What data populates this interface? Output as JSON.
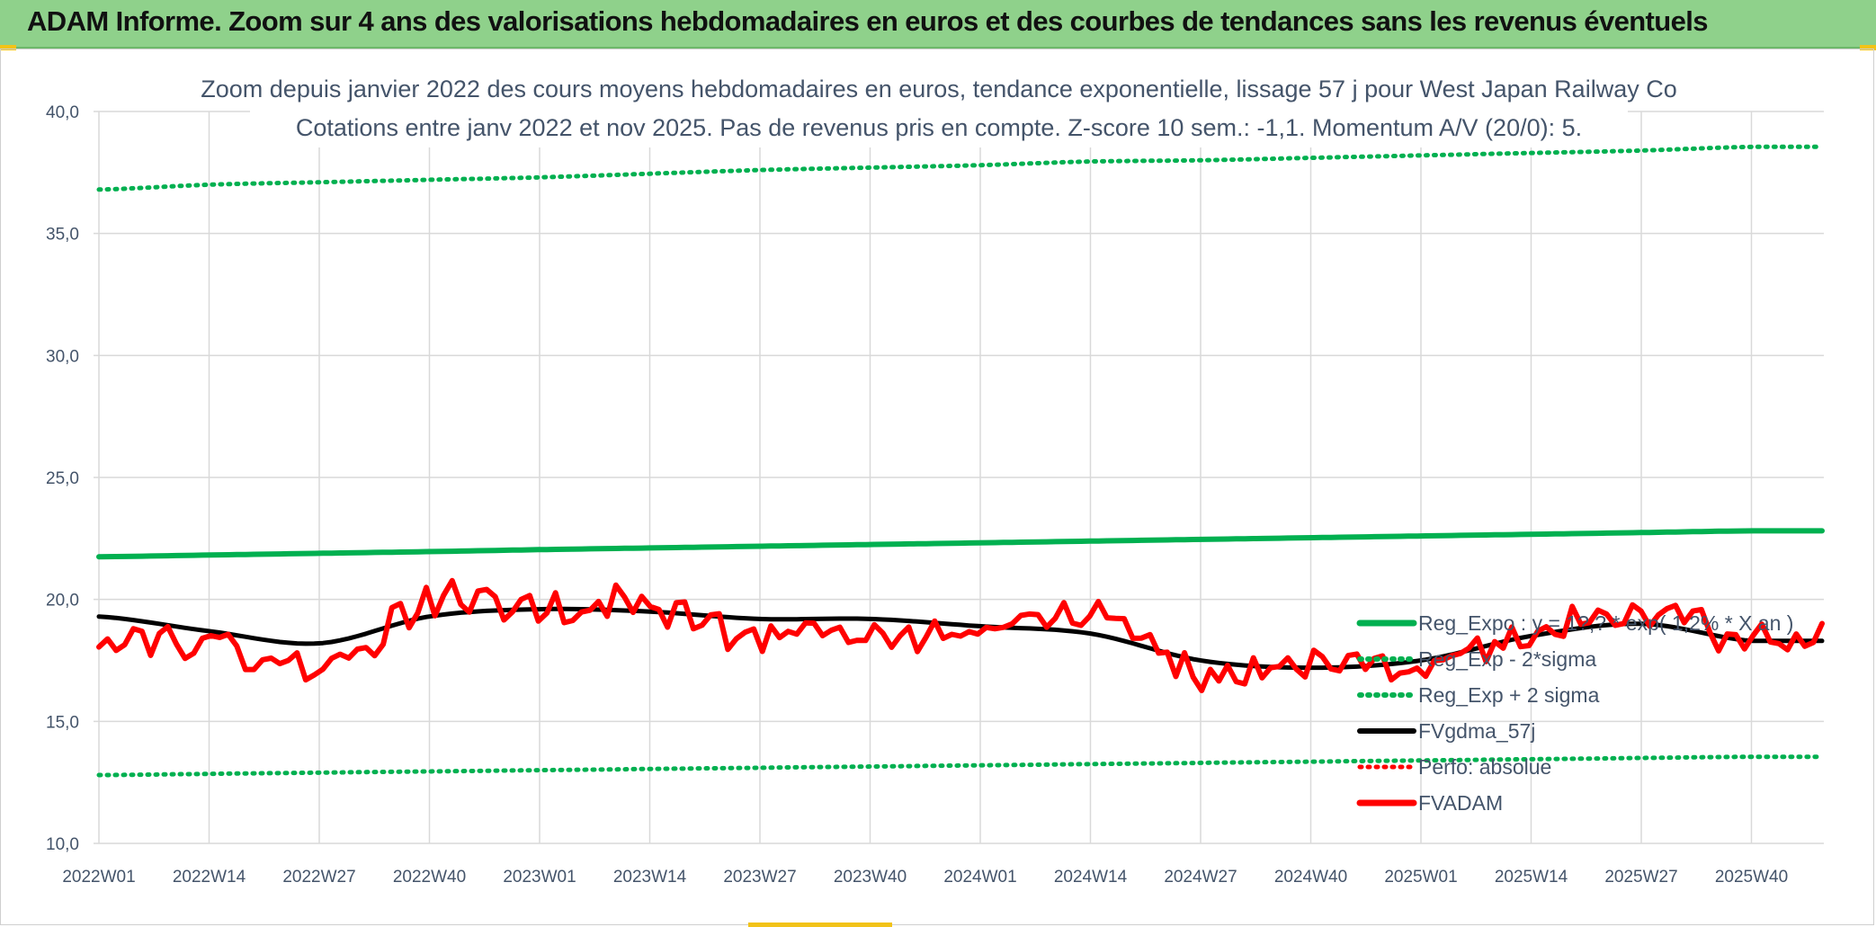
{
  "banner": {
    "title": "ADAM Informe. Zoom sur 4 ans des valorisations hebdomadaires en euros et des courbes de tendances sans les revenus éventuels"
  },
  "colors": {
    "banner_bg": "#8fd18b",
    "reg_exp": "#00b050",
    "fvgdma": "#000000",
    "fvadam": "#ff0000",
    "grid": "#d9d9d9",
    "text": "#44546a"
  },
  "chart_data": {
    "type": "line",
    "title": "Zoom depuis janvier 2022 des cours moyens hebdomadaires en euros, tendance exponentielle, lissage 57 j pour West Japan Railway Co",
    "subtitle": "Cotations entre janv 2022 et nov 2025. Pas de revenus pris en compte. Z-score 10 sem.: -1,1. Momentum A/V (20/0): 5.",
    "ylim": [
      10,
      40
    ],
    "y_ticks": [
      "10,0",
      "15,0",
      "20,0",
      "25,0",
      "30,0",
      "35,0",
      "40,0"
    ],
    "x_ticks": [
      "2022W01",
      "2022W14",
      "2022W27",
      "2022W40",
      "2023W01",
      "2023W14",
      "2023W27",
      "2023W40",
      "2024W01",
      "2024W14",
      "2024W27",
      "2024W40",
      "2025W01",
      "2025W14",
      "2025W27",
      "2025W40"
    ],
    "grid": true,
    "legend_position": "right",
    "series": [
      {
        "name": "Reg_Expo : y = 1?,? * exp( 1,2% * X an )",
        "style": "solid",
        "values_by_tick": [
          21.75,
          21.82,
          21.89,
          21.96,
          22.04,
          22.11,
          22.18,
          22.25,
          22.32,
          22.39,
          22.46,
          22.53,
          22.6,
          22.67,
          22.74,
          22.81
        ]
      },
      {
        "name": "Reg_Exp - 2*sigma",
        "style": "dotted",
        "values_by_tick": [
          12.8,
          12.85,
          12.9,
          12.95,
          13.0,
          13.05,
          13.1,
          13.15,
          13.2,
          13.25,
          13.3,
          13.35,
          13.4,
          13.45,
          13.5,
          13.55
        ]
      },
      {
        "name": "Reg_Exp + 2 sigma",
        "style": "dotted",
        "values_by_tick": [
          36.8,
          37.0,
          37.1,
          37.2,
          37.3,
          37.45,
          37.6,
          37.7,
          37.8,
          37.95,
          38.0,
          38.1,
          38.2,
          38.3,
          38.4,
          38.55
        ]
      },
      {
        "name": "FVgdma_57j",
        "style": "solid",
        "values_by_tick": [
          19.3,
          18.7,
          18.2,
          19.3,
          19.6,
          19.5,
          19.2,
          19.2,
          18.9,
          18.6,
          17.5,
          17.2,
          17.5,
          18.5,
          19.0,
          18.3
        ]
      },
      {
        "name": "Perfo: absolue",
        "style": "dotted",
        "values_by_tick": []
      },
      {
        "name": "FVADAM",
        "style": "solid",
        "values_by_tick": [
          18.5,
          18.3,
          17.2,
          19.9,
          19.7,
          19.7,
          18.5,
          18.5,
          18.7,
          19.6,
          16.9,
          17.2,
          17.4,
          18.6,
          19.6,
          18.3
        ]
      }
    ]
  }
}
